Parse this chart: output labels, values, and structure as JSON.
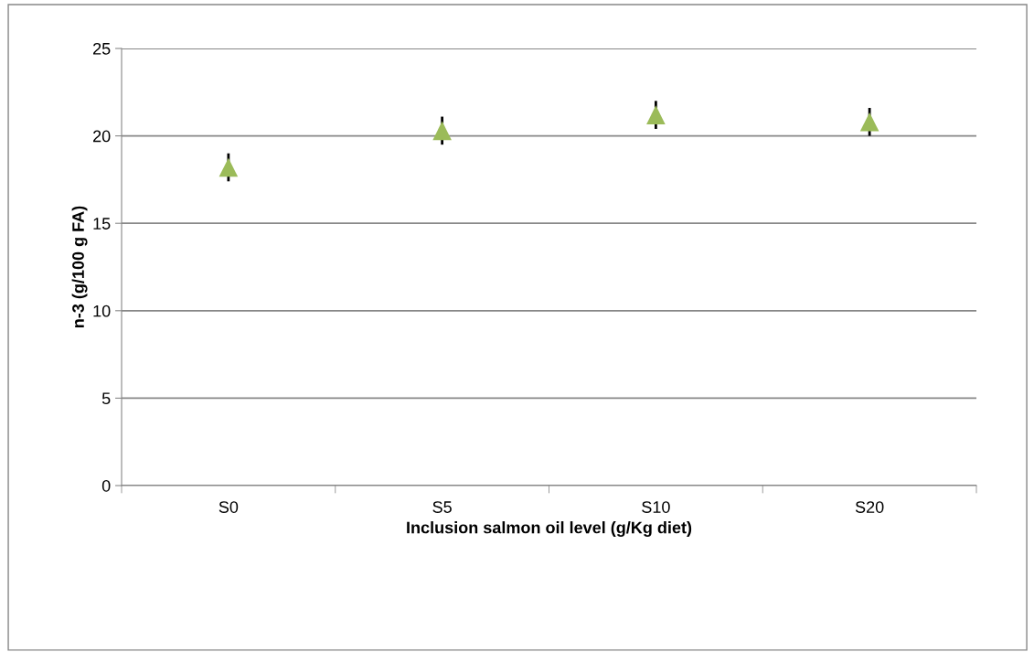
{
  "chart_data": {
    "type": "scatter",
    "xlabel": "Inclusion salmon oil level (g/Kg diet)",
    "ylabel": "n-3 (g/100 g FA)",
    "categories": [
      "S0",
      "S5",
      "S10",
      "S20"
    ],
    "series": [
      {
        "color": "#9bbb59",
        "values": [
          18.2,
          20.3,
          21.2,
          20.8
        ],
        "errors": [
          0.8,
          0.8,
          0.8,
          0.8
        ]
      }
    ],
    "ylim": [
      0,
      25
    ],
    "yticks": [
      0,
      5,
      10,
      15,
      20,
      25
    ],
    "grid": "y",
    "marker": "triangle"
  }
}
